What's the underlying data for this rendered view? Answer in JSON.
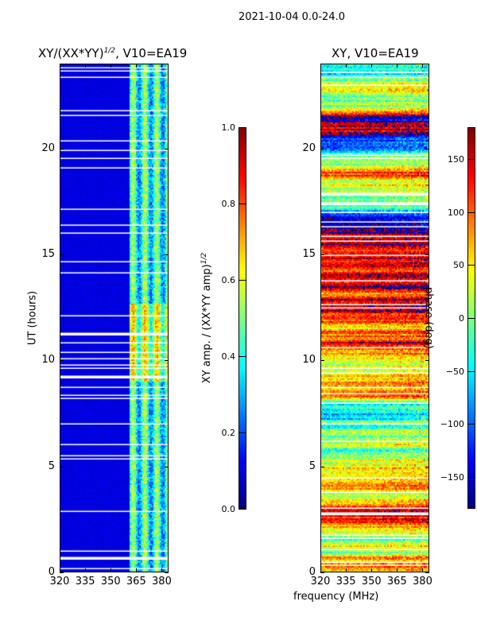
{
  "suptitle": "2021-10-04 0.0-24.0",
  "xlabel_shared": "frequency (MHz)",
  "chart_data": [
    {
      "type": "heatmap",
      "title": "XY/(XX*YY)^1/2, V10=EA19",
      "title_main": "XY/(XX*YY)",
      "title_sup": "1/2",
      "title_tail": ", V10=EA19",
      "xlabel": "frequency (MHz)",
      "ylabel": "UT (hours)",
      "xlim": [
        320,
        384
      ],
      "ylim": [
        0,
        24
      ],
      "xticks": [
        "320",
        "335",
        "350",
        "365",
        "380"
      ],
      "xtick_values": [
        320,
        335,
        350,
        365,
        380
      ],
      "yticks": [
        "0",
        "5",
        "10",
        "15",
        "20"
      ],
      "ytick_values": [
        0,
        5,
        10,
        15,
        20
      ],
      "colormap": "jet",
      "colorbar": {
        "label": "XY amp. / (XX*YY amp)^1/2",
        "label_main": "XY amp. / (XX*YY amp)",
        "label_sup": "1/2",
        "range": [
          0.0,
          1.0
        ],
        "ticks": [
          "0.0",
          "0.2",
          "0.4",
          "0.6",
          "0.8",
          "1.0"
        ],
        "tick_values": [
          0.0,
          0.2,
          0.4,
          0.6,
          0.8,
          1.0
        ]
      }
    },
    {
      "type": "heatmap",
      "title": "XY, V10=EA19",
      "xlabel": "frequency (MHz)",
      "ylabel": "",
      "xlim": [
        320,
        384
      ],
      "ylim": [
        0,
        24
      ],
      "xticks": [
        "320",
        "335",
        "350",
        "365",
        "380"
      ],
      "xtick_values": [
        320,
        335,
        350,
        365,
        380
      ],
      "yticks": [
        "0",
        "5",
        "10",
        "15",
        "20"
      ],
      "ytick_values": [
        0,
        5,
        10,
        15,
        20
      ],
      "colormap": "jet",
      "colorbar": {
        "label": "phase (deg)",
        "range": [
          -180,
          180
        ],
        "ticks": [
          "−150",
          "−100",
          "−50",
          "0",
          "50",
          "100",
          "150"
        ],
        "tick_values": [
          -150,
          -100,
          -50,
          0,
          50,
          100,
          150
        ]
      }
    }
  ]
}
